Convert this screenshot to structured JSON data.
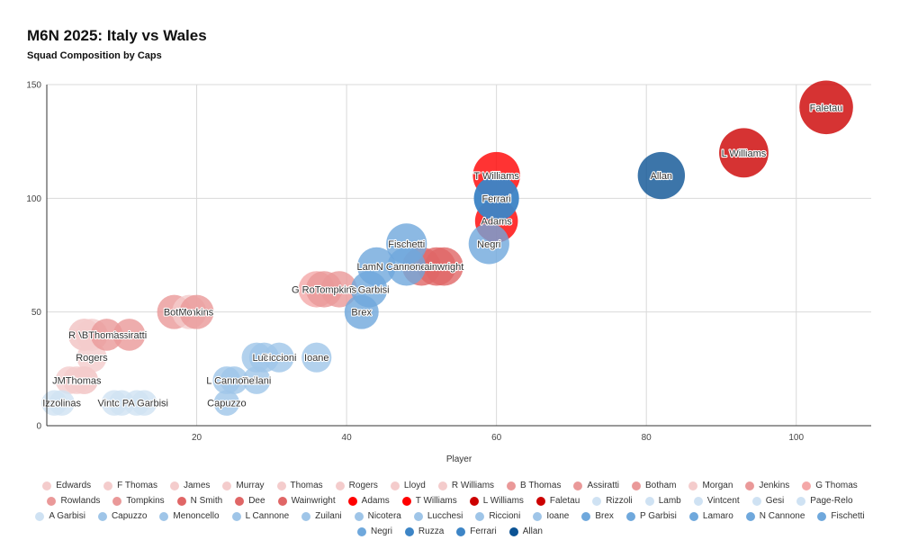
{
  "chart_data": {
    "type": "scatter",
    "title": "M6N 2025: Italy vs Wales",
    "subtitle": "Squad Composition by Caps",
    "xlabel": "Player",
    "ylabel": "",
    "xlim": [
      0,
      110
    ],
    "ylim": [
      0,
      150
    ],
    "xticks": [
      20,
      40,
      60,
      80,
      100
    ],
    "yticks": [
      0,
      50,
      100,
      150
    ],
    "grid": true,
    "legend_position": "bottom",
    "bubble_size_encodes": "caps",
    "series": [
      {
        "name": "Edwards",
        "x": 3,
        "y": 20,
        "color": "#f4cccc"
      },
      {
        "name": "F Thomas",
        "x": 4,
        "y": 20,
        "color": "#f4cccc"
      },
      {
        "name": "James",
        "x": 5,
        "y": 20,
        "color": "#f4cccc"
      },
      {
        "name": "Murray",
        "x": 5,
        "y": 40,
        "color": "#f4cccc"
      },
      {
        "name": "Thomas",
        "x": 5,
        "y": 20,
        "label": "Thomas",
        "color": "#f4cccc"
      },
      {
        "name": "Rogers",
        "x": 6,
        "y": 30,
        "label": "Rogers",
        "color": "#f4cccc"
      },
      {
        "name": "Lloyd",
        "x": 6,
        "y": 40,
        "color": "#f4cccc"
      },
      {
        "name": "R Williams",
        "x": 5,
        "y": 40,
        "color": "#f4cccc"
      },
      {
        "name": "B Thomas",
        "x": 8,
        "y": 40,
        "color": "#ea9999"
      },
      {
        "name": "Assiratti",
        "x": 11,
        "y": 40,
        "label": "Assiratti",
        "color": "#ea9999"
      },
      {
        "name": "Botham",
        "x": 17,
        "y": 50,
        "color": "#ea9999"
      },
      {
        "name": "Morgan",
        "x": 19,
        "y": 50,
        "color": "#f4cccc"
      },
      {
        "name": "Jenkins",
        "x": 20,
        "y": 50,
        "label": "Jenkins",
        "color": "#ea9999"
      },
      {
        "name": "G Thomas",
        "x": 36,
        "y": 60,
        "color": "#f4a8a8"
      },
      {
        "name": "Rowlands",
        "x": 37,
        "y": 60,
        "color": "#ea9999"
      },
      {
        "name": "Tompkins",
        "x": 39,
        "y": 60,
        "color": "#ea9999"
      },
      {
        "name": "N Smith",
        "x": 50,
        "y": 70,
        "color": "#e06666"
      },
      {
        "name": "Dee",
        "x": 52,
        "y": 70,
        "color": "#e06666"
      },
      {
        "name": "Wainwright",
        "x": 53,
        "y": 70,
        "color": "#e06666"
      },
      {
        "name": "Adams",
        "x": 60,
        "y": 90,
        "label": "Adams",
        "color": "#ff0000"
      },
      {
        "name": "T Williams",
        "x": 60,
        "y": 110,
        "label": "T Williams",
        "color": "#ff0000"
      },
      {
        "name": "L Williams",
        "x": 93,
        "y": 120,
        "label": "L Williams",
        "color": "#cc0000"
      },
      {
        "name": "Faletau",
        "x": 104,
        "y": 140,
        "label": "Faletau",
        "color": "#cc0000"
      },
      {
        "name": "Rizzoli",
        "x": 1,
        "y": 10,
        "color": "#cfe2f3"
      },
      {
        "name": "Lamb",
        "x": 2,
        "y": 10,
        "color": "#cfe2f3"
      },
      {
        "name": "Vintcent",
        "x": 9,
        "y": 10,
        "color": "#cfe2f3"
      },
      {
        "name": "Gesi",
        "x": 10,
        "y": 10,
        "color": "#cfe2f3"
      },
      {
        "name": "Page-Relo",
        "x": 12,
        "y": 10,
        "color": "#cfe2f3"
      },
      {
        "name": "A Garbisi",
        "x": 13,
        "y": 10,
        "color": "#cfe2f3"
      },
      {
        "name": "Capuzzo",
        "x": 24,
        "y": 10,
        "label": "Capuzzo",
        "color": "#9fc5e8"
      },
      {
        "name": "Menoncello",
        "x": 24,
        "y": 20,
        "color": "#9fc5e8"
      },
      {
        "name": "L Cannone",
        "x": 25,
        "y": 20,
        "color": "#9fc5e8"
      },
      {
        "name": "Zuilani",
        "x": 28,
        "y": 20,
        "label": "Zuilani",
        "color": "#9fc5e8"
      },
      {
        "name": "Nicotera",
        "x": 28,
        "y": 30,
        "color": "#9fc5e8"
      },
      {
        "name": "Lucchesi",
        "x": 29,
        "y": 30,
        "color": "#9fc5e8"
      },
      {
        "name": "Riccioni",
        "x": 31,
        "y": 30,
        "label": "Riccioni",
        "color": "#9fc5e8"
      },
      {
        "name": "Ioane",
        "x": 36,
        "y": 30,
        "label": "Ioane",
        "color": "#9fc5e8"
      },
      {
        "name": "Brex",
        "x": 42,
        "y": 50,
        "label": "Brex",
        "color": "#6fa8dc"
      },
      {
        "name": "P Garbisi",
        "x": 43,
        "y": 60,
        "label": "P Garbisi",
        "color": "#6fa8dc"
      },
      {
        "name": "Lamaro",
        "x": 44,
        "y": 70,
        "color": "#6fa8dc"
      },
      {
        "name": "N Cannone",
        "x": 48,
        "y": 70,
        "color": "#6fa8dc"
      },
      {
        "name": "Fischetti",
        "x": 48,
        "y": 80,
        "label": "Fischetti",
        "color": "#6fa8dc"
      },
      {
        "name": "Negri",
        "x": 59,
        "y": 80,
        "label": "Negri",
        "color": "#6fa8dc"
      },
      {
        "name": "Ruzza",
        "x": 60,
        "y": 100,
        "color": "#3d85c6"
      },
      {
        "name": "Ferrari",
        "x": 60,
        "y": 100,
        "label": "Ferrari",
        "color": "#3d85c6"
      },
      {
        "name": "Allan",
        "x": 82,
        "y": 110,
        "label": "Allan",
        "color": "#0b5394"
      }
    ],
    "overlap_labels": [
      {
        "text": "R V",
        "x": 4,
        "y": 40
      },
      {
        "text": "BThomas",
        "x": 7.5,
        "y": 40
      },
      {
        "text": "JMThomas",
        "x": 4,
        "y": 20
      },
      {
        "text": "Izzolinas",
        "x": 2,
        "y": 10
      },
      {
        "text": "Vintc PA Garbisi",
        "x": 11.5,
        "y": 10
      },
      {
        "text": "BotMo",
        "x": 17.5,
        "y": 50
      },
      {
        "text": "L Cannone",
        "x": 24.5,
        "y": 20
      },
      {
        "text": "Luc",
        "x": 28.5,
        "y": 30
      },
      {
        "text": "G RoTompkins",
        "x": 37,
        "y": 60
      },
      {
        "text": "LamN Cannone",
        "x": 46,
        "y": 70
      },
      {
        "text": "ainwright",
        "x": 53,
        "y": 70
      }
    ]
  }
}
